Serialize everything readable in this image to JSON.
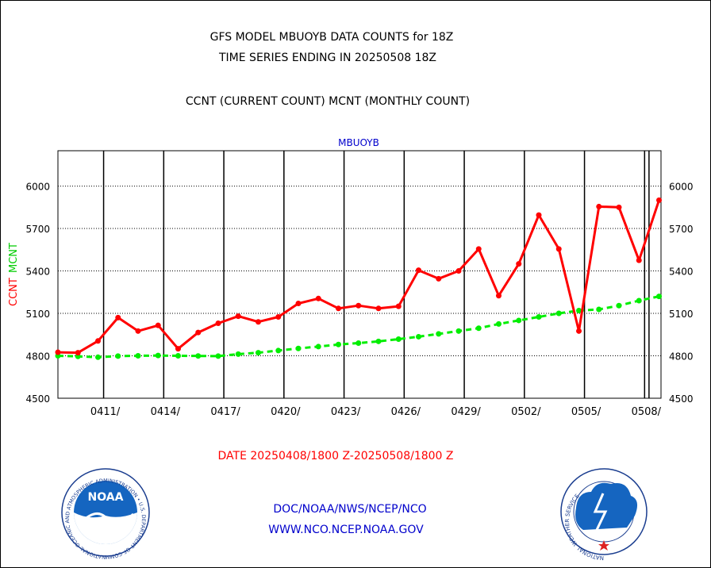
{
  "header": {
    "title_line1": "GFS MODEL MBUOYB DATA COUNTS for 18Z",
    "title_line2": "TIME SERIES ENDING IN 20250508 18Z",
    "subtitle": "CCNT (CURRENT COUNT) MCNT (MONTHLY COUNT)"
  },
  "date_range": "DATE 20250408/1800 Z-20250508/1800 Z",
  "footer": {
    "line1": "DOC/NOAA/NWS/NCEP/NCO",
    "line2": "WWW.NCO.NCEP.NOAA.GOV"
  },
  "logos": {
    "noaa_text": "NOAA",
    "noaa_ring_text": "NATIONAL OCEANIC AND ATMOSPHERIC ADMINISTRATION • U.S. DEPARTMENT OF COMMERCE •",
    "nws_ring_text": "NATIONAL WEATHER SERVICE"
  },
  "colors": {
    "ccnt": "#ff0000",
    "mcnt": "#00ee00",
    "title": "#000000",
    "date": "#ff0000",
    "footer": "#0000cc",
    "plot_label": "#0000cc"
  },
  "chart_data": {
    "type": "line",
    "title": "MBUOYB",
    "ylabel_ccnt": "CCNT",
    "ylabel_mcnt": "MCNT",
    "ylim": [
      4500,
      6250
    ],
    "yticks": [
      4500,
      4800,
      5100,
      5400,
      5700,
      6000
    ],
    "ytick_labels": [
      "4500",
      "4800",
      "5100",
      "5400",
      "5700",
      "6000"
    ],
    "x_start": "20250408",
    "x_end": "20250508",
    "x": [
      "0408",
      "0409",
      "0410",
      "0411",
      "0412",
      "0413",
      "0414",
      "0415",
      "0416",
      "0417",
      "0418",
      "0419",
      "0420",
      "0421",
      "0422",
      "0423",
      "0424",
      "0425",
      "0426",
      "0427",
      "0428",
      "0429",
      "0430",
      "0501",
      "0502",
      "0503",
      "0504",
      "0505",
      "0506",
      "0507",
      "0508"
    ],
    "xtick_labels": [
      "0411/",
      "0414/",
      "0417/",
      "0420/",
      "0423/",
      "0426/",
      "0429/",
      "0502/",
      "0505/",
      "0508/"
    ],
    "grid": true,
    "series": [
      {
        "name": "CCNT",
        "values": [
          4825,
          4822,
          4905,
          5070,
          4975,
          5015,
          4850,
          4965,
          5030,
          5080,
          5040,
          5075,
          5170,
          5205,
          5135,
          5155,
          5135,
          5150,
          5405,
          5345,
          5400,
          5555,
          5225,
          5450,
          5795,
          5555,
          4975,
          5855,
          5850,
          5475,
          5900
        ]
      },
      {
        "name": "MCNT",
        "values": [
          4800,
          4796,
          4790,
          4798,
          4800,
          4802,
          4800,
          4799,
          4798,
          4812,
          4822,
          4837,
          4852,
          4865,
          4880,
          4890,
          4902,
          4918,
          4935,
          4955,
          4975,
          4995,
          5025,
          5050,
          5075,
          5100,
          5120,
          5128,
          5155,
          5190,
          5220
        ]
      }
    ]
  }
}
